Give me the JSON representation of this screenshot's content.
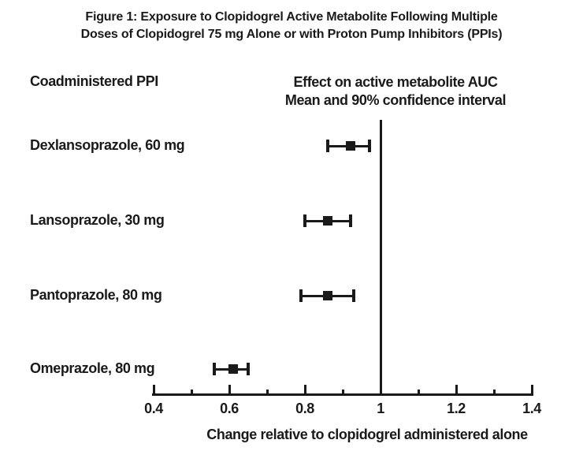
{
  "figure": {
    "title_line1": "Figure 1: Exposure to Clopidogrel Active Metabolite Following Multiple",
    "title_line2": "Doses of Clopidogrel 75 mg Alone or with Proton Pump Inhibitors (PPIs)",
    "left_header": "Coadministered PPI",
    "right_header_line1": "Effect on active metabolite AUC",
    "right_header_line2": "Mean and 90% confidence interval",
    "ink_color": "#1a1a1a",
    "background_color": "#ffffff"
  },
  "chart_data": {
    "type": "scatter",
    "subtype": "forest-plot-with-error-bars",
    "title": "Figure 1: Exposure to Clopidogrel Active Metabolite Following Multiple Doses of Clopidogrel 75 mg Alone or with Proton Pump Inhibitors (PPIs)",
    "left_column_header": "Coadministered PPI",
    "right_column_header": "Effect on active metabolite AUC Mean and 90% confidence interval",
    "xlabel": "Change relative to clopidogrel administered alone",
    "ylabel": "",
    "xlim": [
      0.4,
      1.4
    ],
    "x_major_ticks": [
      0.4,
      0.6,
      0.8,
      1,
      1.2,
      1.4
    ],
    "x_major_tick_labels": [
      "0.4",
      "0.6",
      "0.8",
      "1",
      "1.2",
      "1.4"
    ],
    "x_minor_ticks": [
      0.5,
      0.7,
      0.9,
      1.1,
      1.3
    ],
    "reference_line_x": 1,
    "grid": false,
    "marker": "square",
    "rows": [
      {
        "label": "Dexlansoprazole, 60 mg",
        "mean": 0.92,
        "ci_low": 0.86,
        "ci_high": 0.97
      },
      {
        "label": "Lansoprazole, 30 mg",
        "mean": 0.86,
        "ci_low": 0.8,
        "ci_high": 0.92
      },
      {
        "label": "Pantoprazole, 80 mg",
        "mean": 0.86,
        "ci_low": 0.79,
        "ci_high": 0.93
      },
      {
        "label": "Omeprazole, 80 mg",
        "mean": 0.61,
        "ci_low": 0.56,
        "ci_high": 0.65
      }
    ]
  }
}
